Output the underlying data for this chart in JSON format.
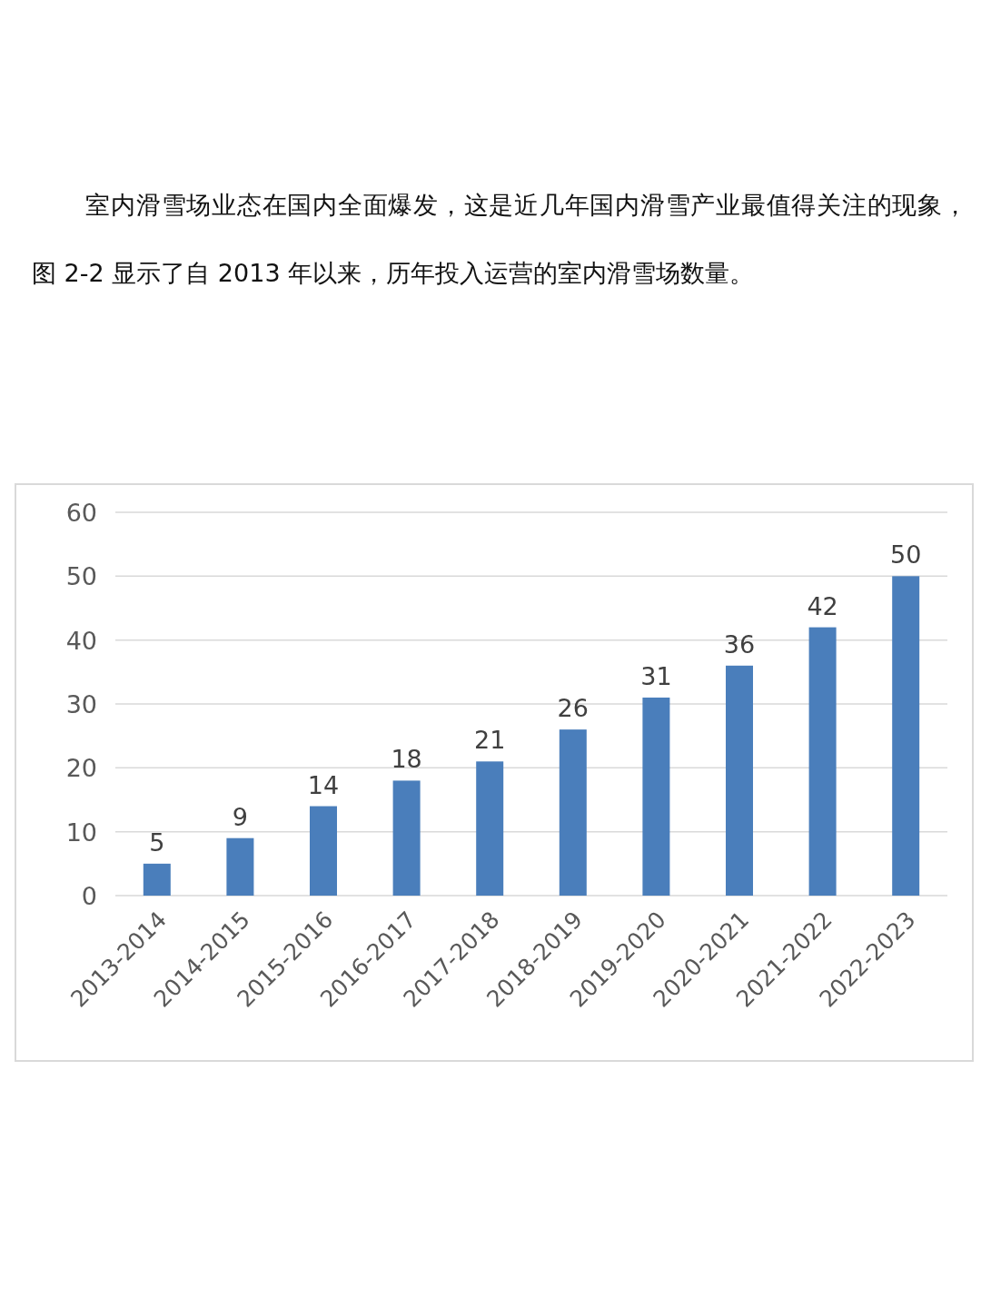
{
  "chart_data": {
    "type": "bar",
    "annotations": [
      "室内滑雪场业态在国内全面爆发，这是近几年国内滑雪产业最值得关注的现象，图 2-2 显示了自 2013 年以来，历年投入运营的室内滑雪场数量。"
    ],
    "categories": [
      "2013-2014",
      "2014-2015",
      "2015-2016",
      "2016-2017",
      "2017-2018",
      "2018-2019",
      "2019-2020",
      "2020-2021",
      "2021-2022",
      "2022-2023"
    ],
    "values": [
      5,
      9,
      14,
      18,
      21,
      26,
      31,
      36,
      42,
      50
    ],
    "color": "#4a7ebb",
    "ylim": [
      0,
      60
    ],
    "yticks": [
      0,
      10,
      20,
      30,
      40,
      50,
      60
    ],
    "grid": "y",
    "data_labels": true
  }
}
